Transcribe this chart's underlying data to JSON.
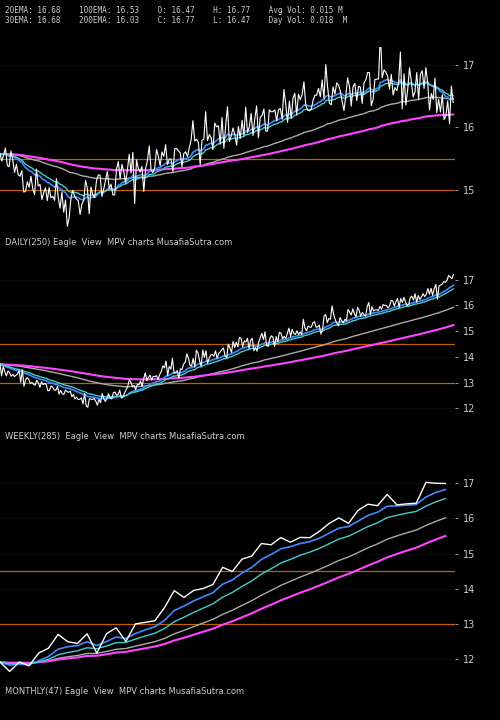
{
  "background_color": "#000000",
  "header_text_color": "#cccccc",
  "label_color": "#cccccc",
  "orange_line_color": "#cc6600",
  "panels": [
    {
      "label": "DAILY(250) Eagle  View  MPV charts MusafiaSutra.com",
      "header_line1": "20EMA: 16.68    100EMA: 16.53    O: 16.47    H: 16.77    Avg Vol: 0.015 M",
      "header_line2": "30EMA: 16.68    200EMA: 16.03    C: 16.77    L: 16.47    Day Vol: 0.018  M",
      "ylim": [
        14.4,
        17.3
      ],
      "yticks": [
        15,
        16,
        17
      ],
      "orange_lines": [
        15.0,
        15.5
      ],
      "period": "daily",
      "n_points": 250
    },
    {
      "label": "WEEKLY(285)  Eagle  View  MPV charts MusafiaSutra.com",
      "ylim": [
        11.5,
        17.8
      ],
      "yticks": [
        12,
        13,
        14,
        15,
        16,
        17
      ],
      "orange_lines": [
        13.0,
        14.5
      ],
      "period": "weekly",
      "n_points": 285
    },
    {
      "label": "MONTHLY(47) Eagle  View  MPV charts MusafiaSutra.com",
      "ylim": [
        11.5,
        17.8
      ],
      "yticks": [
        12,
        13,
        14,
        15,
        16,
        17
      ],
      "orange_lines": [
        13.0,
        14.5
      ],
      "period": "monthly",
      "n_points": 47
    }
  ]
}
